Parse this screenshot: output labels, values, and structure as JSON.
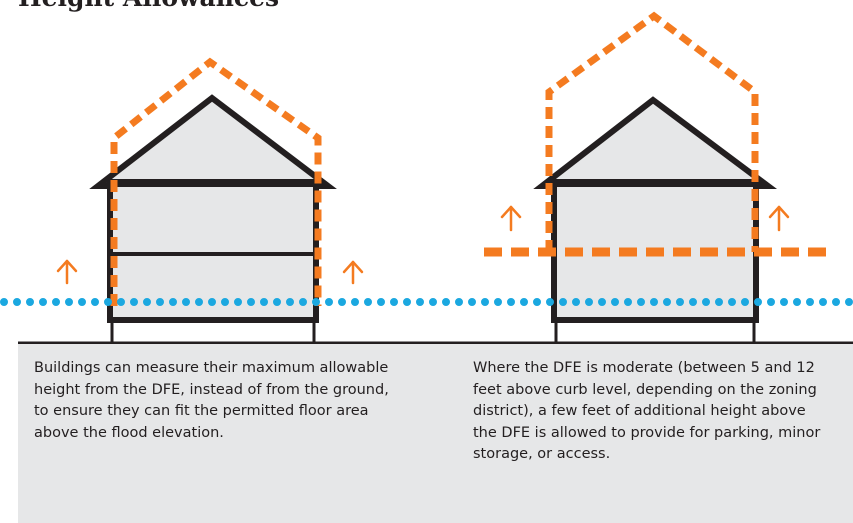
{
  "title": "Height Allowances",
  "captions": {
    "left": "Buildings can measure their maximum allowable height from the DFE, instead of from the ground, to ensure they can fit the permitted floor area above the flood elevation.",
    "right": "Where the DFE is moderate (between 5 and 12 feet above curb level, depending on the zoning district), a few feet of additional height above the DFE is allowed to provide for parking, minor storage, or access."
  },
  "colors": {
    "flood_line": "#1ba8e0",
    "allowance": "#f47b20",
    "outline": "#231f20",
    "building_fill": "#e6e7e8",
    "panel": "#e6e7e8"
  },
  "icons": [
    "up-arrow-icon"
  ]
}
